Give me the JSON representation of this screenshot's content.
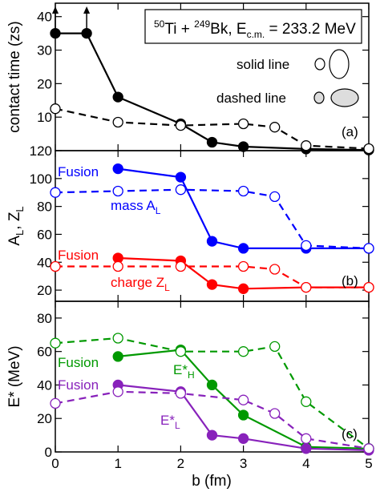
{
  "chart_data": [
    {
      "type": "line",
      "panel_label": "(a)",
      "title_parts": {
        "a1": "50",
        "el1": "Ti + ",
        "a2": "249",
        "el2": "Bk, E",
        "sub": "c.m.",
        "tail": " = 233.2 MeV"
      },
      "ylabel": "contact time (zs)",
      "ylim": [
        0,
        44
      ],
      "yticks": [
        10,
        20,
        30,
        40
      ],
      "series": [
        {
          "style": "solid",
          "color": "#000000",
          "x": [
            0,
            0.5,
            1,
            2,
            2.5,
            3,
            4,
            5
          ],
          "y": [
            35,
            35,
            16,
            8,
            2.5,
            1.2,
            0.5,
            0.2
          ]
        },
        {
          "style": "dashed",
          "color": "#000000",
          "x": [
            0,
            1,
            2,
            3,
            3.5,
            4,
            5
          ],
          "y": [
            12.5,
            8.5,
            7.5,
            8,
            7,
            1.5,
            0.6
          ]
        }
      ],
      "annotations": {
        "solid_line": "solid line",
        "dashed_line": "dashed line"
      }
    },
    {
      "type": "line",
      "panel_label": "(b)",
      "ylabel_parts": {
        "a": "A",
        "sub1": "L",
        "mid": ", Z",
        "sub2": "L"
      },
      "ylim": [
        12,
        120
      ],
      "yticks": [
        20,
        40,
        60,
        80,
        100,
        120
      ],
      "series": [
        {
          "style": "solid",
          "color": "#0000ff",
          "x": [
            1,
            2,
            2.5,
            3,
            4,
            5
          ],
          "y": [
            107,
            101,
            55,
            50,
            50,
            50
          ]
        },
        {
          "style": "dashed",
          "color": "#0000ff",
          "x": [
            0,
            1,
            2,
            3,
            3.5,
            4,
            5
          ],
          "y": [
            90,
            91,
            92,
            91,
            87,
            52,
            50
          ]
        },
        {
          "style": "solid",
          "color": "#ff0000",
          "x": [
            1,
            2,
            2.5,
            3,
            4,
            5
          ],
          "y": [
            43,
            41,
            24,
            21,
            22,
            22
          ]
        },
        {
          "style": "dashed",
          "color": "#ff0000",
          "x": [
            0,
            1,
            2,
            3,
            3.5,
            4,
            5
          ],
          "y": [
            37,
            37,
            37,
            37,
            35,
            22,
            22
          ]
        }
      ],
      "annotations": {
        "fusion": "Fusion",
        "mass": "mass A",
        "mass_sub": "L",
        "charge": "charge Z",
        "charge_sub": "L"
      }
    },
    {
      "type": "line",
      "panel_label": "(c)",
      "ylabel": "E* (MeV)",
      "xlabel": "b (fm)",
      "xlim": [
        0,
        5
      ],
      "xticks": [
        0,
        1,
        2,
        3,
        4,
        5
      ],
      "ylim": [
        0,
        90
      ],
      "yticks": [
        0,
        20,
        40,
        60,
        80
      ],
      "series": [
        {
          "style": "solid",
          "color": "#009900",
          "x": [
            1,
            2,
            2.5,
            3,
            4,
            5
          ],
          "y": [
            57,
            61,
            40,
            22,
            3,
            2
          ]
        },
        {
          "style": "dashed",
          "color": "#009900",
          "x": [
            0,
            1,
            2,
            3,
            3.5,
            4,
            5
          ],
          "y": [
            65,
            68,
            60,
            60,
            63,
            30,
            2
          ]
        },
        {
          "style": "solid",
          "color": "#8822bb",
          "x": [
            1,
            2,
            2.5,
            3,
            4,
            5
          ],
          "y": [
            40,
            36,
            10,
            8,
            2,
            1
          ]
        },
        {
          "style": "dashed",
          "color": "#8822bb",
          "x": [
            0,
            1,
            2,
            3,
            3.5,
            4,
            5
          ],
          "y": [
            29,
            36,
            35,
            31,
            23,
            8,
            2
          ]
        }
      ],
      "annotations": {
        "fusion": "Fusion",
        "eh": "E*",
        "eh_sub": "H",
        "el": "E*",
        "el_sub": "L"
      }
    }
  ]
}
